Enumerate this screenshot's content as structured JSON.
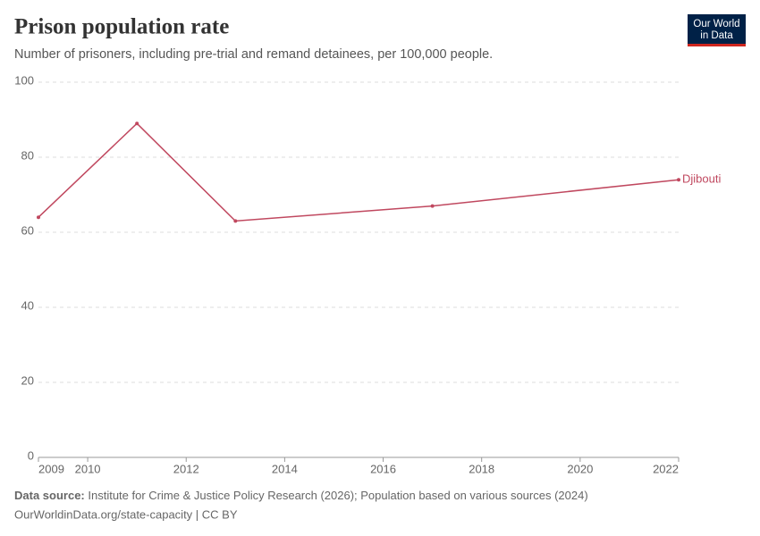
{
  "chart_data": {
    "type": "line",
    "title": "Prison population rate",
    "subtitle": "Number of prisoners, including pre-trial and remand detainees, per 100,000 people.",
    "logo": [
      "Our World",
      "in Data"
    ],
    "source_label": "Data source:",
    "source_text": "Institute for Crime & Justice Policy Research (2026); Population based on various sources (2024)",
    "footer": "OurWorldinData.org/state-capacity | CC BY",
    "x": [
      2009,
      2011,
      2013,
      2017,
      2022
    ],
    "series": [
      {
        "name": "Djibouti",
        "color": "#c0485f",
        "values": [
          64,
          89,
          63,
          67,
          74
        ]
      }
    ],
    "xlim": [
      2009,
      2022
    ],
    "xticks": [
      2009,
      2010,
      2012,
      2014,
      2016,
      2018,
      2020,
      2022
    ],
    "ylim": [
      0,
      100
    ],
    "yticks": [
      0,
      20,
      40,
      60,
      80,
      100
    ],
    "grid": true
  }
}
